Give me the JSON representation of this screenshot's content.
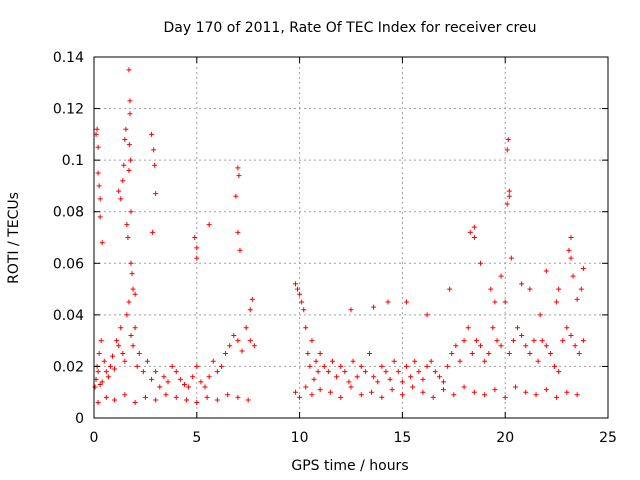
{
  "chart_data": {
    "type": "scatter",
    "title": "Day 170 of 2011, Rate Of TEC Index for receiver creu",
    "xlabel": "GPS time / hours",
    "ylabel": "ROTI / TECUs",
    "xlim": [
      0,
      25
    ],
    "ylim": [
      0,
      0.14
    ],
    "x_ticks": [
      0,
      5,
      10,
      15,
      20,
      25
    ],
    "x_tick_labels": [
      "0",
      "5",
      "10",
      "15",
      "20",
      "25"
    ],
    "y_ticks": [
      0,
      0.02,
      0.04,
      0.06,
      0.08,
      0.1,
      0.12,
      0.14
    ],
    "y_tick_labels": [
      "0",
      "0.02",
      "0.04",
      "0.06",
      "0.08",
      "0.1",
      "0.12",
      "0.14"
    ],
    "grid": true,
    "marker": "+",
    "color": "#ff0000",
    "series": [
      {
        "name": "ROTI",
        "x": [
          0.05,
          0.1,
          0.15,
          0.2,
          0.25,
          0.3,
          0.35,
          0.4,
          0.5,
          0.6,
          0.7,
          0.8,
          0.9,
          1.0,
          1.1,
          1.2,
          1.3,
          1.4,
          1.5,
          1.6,
          1.7,
          1.8,
          1.9,
          2.0,
          2.1,
          2.2,
          2.4,
          2.6,
          2.8,
          3.0,
          3.2,
          3.4,
          3.6,
          3.8,
          4.0,
          4.2,
          4.4,
          4.6,
          4.8,
          5.0,
          5.2,
          5.4,
          5.6,
          5.8,
          6.0,
          6.2,
          6.4,
          6.6,
          6.8,
          7.0,
          7.2,
          7.4,
          7.6,
          7.8,
          0.1,
          0.15,
          0.2,
          0.2,
          0.25,
          0.3,
          0.3,
          0.4,
          1.2,
          1.3,
          1.4,
          1.45,
          1.5,
          1.55,
          1.6,
          1.65,
          1.7,
          1.7,
          1.75,
          1.75,
          1.8,
          1.8,
          1.85,
          1.9,
          2.0,
          2.8,
          2.9,
          2.95,
          3.0,
          2.85,
          4.9,
          5.0,
          5.0,
          5.6,
          6.9,
          7.0,
          7.05,
          7.0,
          7.1,
          7.6,
          7.7,
          1.78,
          1.72,
          0.2,
          0.6,
          1.0,
          1.5,
          2.0,
          2.5,
          3.0,
          3.5,
          4.0,
          4.5,
          5.0,
          5.5,
          6.0,
          6.5,
          7.0,
          7.5,
          9.8,
          9.9,
          10.0,
          10.1,
          10.2,
          10.3,
          10.4,
          10.5,
          10.6,
          10.7,
          10.8,
          10.9,
          11.0,
          11.2,
          11.4,
          11.6,
          11.8,
          12.0,
          12.2,
          12.4,
          12.6,
          12.8,
          13.0,
          13.2,
          13.4,
          13.6,
          13.8,
          14.0,
          14.2,
          14.4,
          14.6,
          14.8,
          15.0,
          15.2,
          15.4,
          15.6,
          15.8,
          16.0,
          16.2,
          16.4,
          16.6,
          16.8,
          17.0,
          17.2,
          17.4,
          17.6,
          17.8,
          18.0,
          18.2,
          18.4,
          18.6,
          18.8,
          19.0,
          19.2,
          19.4,
          19.6,
          19.8,
          20.0,
          20.2,
          20.4,
          20.6,
          20.8,
          21.0,
          21.2,
          21.4,
          21.6,
          21.8,
          22.0,
          22.2,
          22.4,
          22.6,
          22.8,
          23.0,
          23.2,
          23.4,
          23.6,
          23.8,
          9.8,
          10.0,
          10.3,
          10.6,
          11.0,
          11.5,
          12.0,
          12.5,
          13.0,
          13.5,
          14.0,
          14.5,
          15.0,
          15.5,
          16.0,
          16.5,
          17.0,
          17.5,
          18.0,
          18.5,
          19.0,
          19.5,
          20.0,
          20.5,
          21.0,
          21.5,
          22.0,
          22.5,
          23.0,
          23.5,
          12.5,
          13.6,
          14.3,
          15.2,
          16.2,
          17.3,
          18.3,
          18.5,
          18.5,
          18.8,
          19.3,
          19.5,
          19.8,
          20.1,
          20.15,
          20.2,
          20.1,
          20.2,
          20.3,
          20.8,
          21.2,
          21.7,
          22.0,
          22.5,
          22.6,
          23.1,
          23.2,
          23.2,
          23.3,
          23.5,
          23.7,
          23.8
        ],
        "y": [
          0.012,
          0.015,
          0.02,
          0.018,
          0.025,
          0.013,
          0.03,
          0.014,
          0.022,
          0.018,
          0.016,
          0.02,
          0.024,
          0.019,
          0.03,
          0.028,
          0.035,
          0.025,
          0.022,
          0.04,
          0.045,
          0.032,
          0.028,
          0.035,
          0.02,
          0.025,
          0.018,
          0.022,
          0.015,
          0.018,
          0.012,
          0.016,
          0.014,
          0.02,
          0.018,
          0.015,
          0.013,
          0.012,
          0.016,
          0.02,
          0.014,
          0.012,
          0.016,
          0.022,
          0.018,
          0.02,
          0.025,
          0.028,
          0.032,
          0.03,
          0.026,
          0.035,
          0.03,
          0.028,
          0.11,
          0.112,
          0.105,
          0.095,
          0.09,
          0.085,
          0.078,
          0.068,
          0.088,
          0.085,
          0.092,
          0.098,
          0.108,
          0.112,
          0.075,
          0.07,
          0.096,
          0.135,
          0.123,
          0.118,
          0.08,
          0.06,
          0.056,
          0.05,
          0.048,
          0.11,
          0.104,
          0.098,
          0.087,
          0.072,
          0.07,
          0.066,
          0.062,
          0.075,
          0.086,
          0.097,
          0.094,
          0.072,
          0.065,
          0.042,
          0.046,
          0.1,
          0.106,
          0.006,
          0.008,
          0.007,
          0.009,
          0.006,
          0.008,
          0.007,
          0.009,
          0.008,
          0.007,
          0.006,
          0.008,
          0.007,
          0.009,
          0.008,
          0.007,
          0.052,
          0.05,
          0.048,
          0.045,
          0.042,
          0.035,
          0.025,
          0.02,
          0.03,
          0.015,
          0.022,
          0.018,
          0.025,
          0.02,
          0.018,
          0.022,
          0.016,
          0.02,
          0.018,
          0.014,
          0.022,
          0.016,
          0.02,
          0.018,
          0.025,
          0.016,
          0.014,
          0.02,
          0.018,
          0.015,
          0.022,
          0.018,
          0.014,
          0.02,
          0.016,
          0.022,
          0.018,
          0.015,
          0.02,
          0.022,
          0.018,
          0.016,
          0.014,
          0.02,
          0.025,
          0.028,
          0.022,
          0.03,
          0.035,
          0.025,
          0.03,
          0.028,
          0.022,
          0.025,
          0.035,
          0.03,
          0.028,
          0.045,
          0.025,
          0.03,
          0.035,
          0.032,
          0.028,
          0.025,
          0.03,
          0.022,
          0.03,
          0.028,
          0.025,
          0.02,
          0.018,
          0.03,
          0.035,
          0.032,
          0.028,
          0.025,
          0.03,
          0.01,
          0.008,
          0.012,
          0.009,
          0.011,
          0.01,
          0.008,
          0.012,
          0.009,
          0.01,
          0.008,
          0.011,
          0.009,
          0.012,
          0.01,
          0.008,
          0.011,
          0.009,
          0.012,
          0.01,
          0.009,
          0.011,
          0.008,
          0.012,
          0.01,
          0.009,
          0.011,
          0.008,
          0.01,
          0.009,
          0.042,
          0.043,
          0.045,
          0.045,
          0.04,
          0.05,
          0.072,
          0.07,
          0.074,
          0.06,
          0.05,
          0.045,
          0.055,
          0.104,
          0.108,
          0.088,
          0.083,
          0.086,
          0.062,
          0.052,
          0.05,
          0.04,
          0.057,
          0.045,
          0.05,
          0.065,
          0.07,
          0.062,
          0.055,
          0.046,
          0.05,
          0.058
        ]
      }
    ]
  }
}
